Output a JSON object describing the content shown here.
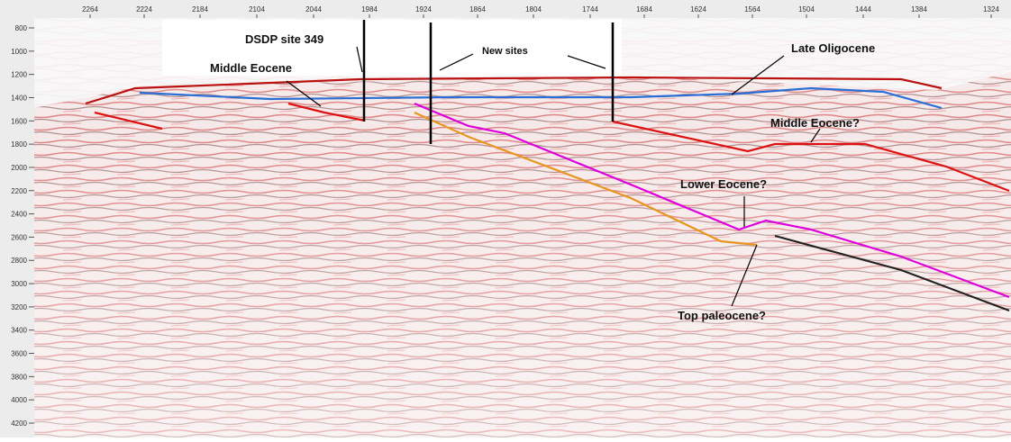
{
  "top_axis": {
    "ticks": [
      "2264",
      "2224",
      "2184",
      "2104",
      "2044",
      "1984",
      "1924",
      "1864",
      "1804",
      "1744",
      "1684",
      "1624",
      "1564",
      "1504",
      "1444",
      "1384",
      "1324"
    ]
  },
  "left_axis": {
    "ticks": [
      "800",
      "1000",
      "1200",
      "1400",
      "1600",
      "1800",
      "2000",
      "2200",
      "2400",
      "2600",
      "2800",
      "3000",
      "3200",
      "3400",
      "3600",
      "3800",
      "4000",
      "4200"
    ]
  },
  "annotations": [
    "DSDP site 349",
    "Middle Eocene",
    "New sites",
    "Late Oligocene",
    "Middle Eocene?",
    "Lower Eocene?",
    "Top paleocene?"
  ]
}
